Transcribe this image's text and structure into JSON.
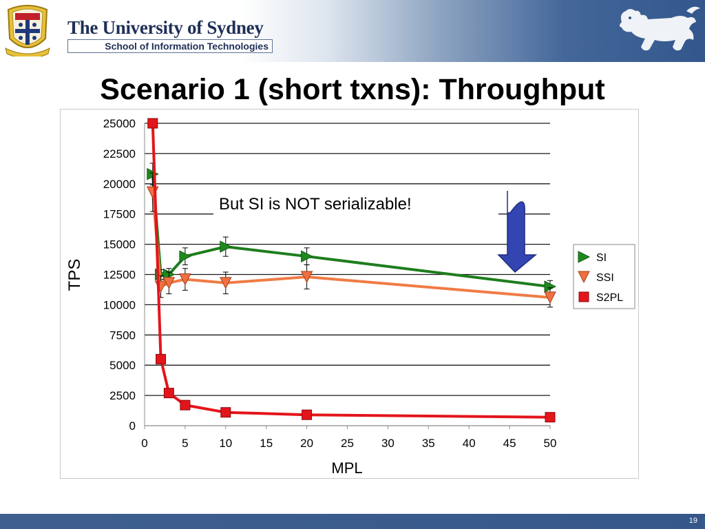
{
  "header": {
    "university": "The University of Sydney",
    "school": "School of Information Technologies",
    "crest_icon": "university-crest",
    "lion_icon": "lion-emblem",
    "brand_color": "#1f2f56",
    "banner_color": "#33578c"
  },
  "slide": {
    "title": "Scenario 1 (short txns): Throughput",
    "page_number": "19"
  },
  "annotation": {
    "text": "But SI is NOT serializable!",
    "arrow_icon": "down-arrow",
    "arrow_color": "#3345b0"
  },
  "chart_data": {
    "type": "line",
    "xlabel": "MPL",
    "ylabel": "TPS",
    "xlim": [
      0,
      50
    ],
    "ylim": [
      0,
      25000
    ],
    "x_ticks": [
      "0",
      "5",
      "10",
      "15",
      "20",
      "25",
      "30",
      "35",
      "40",
      "45",
      "50"
    ],
    "y_ticks": [
      "0",
      "2500",
      "5000",
      "7500",
      "10000",
      "12500",
      "15000",
      "17500",
      "20000",
      "22500",
      "25000"
    ],
    "grid": "horizontal",
    "legend_position": "right",
    "error_bars": true,
    "series": [
      {
        "name": "SI",
        "color": "#1e8a1e",
        "line_color": "#1e7d1e",
        "marker": "triangle-right",
        "x": [
          1,
          2,
          3,
          5,
          10,
          20,
          50
        ],
        "y": [
          20800,
          12500,
          12500,
          14000,
          14800,
          14000,
          11500
        ],
        "err": [
          900,
          400,
          500,
          700,
          800,
          700,
          500
        ]
      },
      {
        "name": "SSI",
        "color": "#f07040",
        "line_color": "#f07b45",
        "marker": "triangle-down",
        "x": [
          1,
          2,
          3,
          5,
          10,
          20,
          50
        ],
        "y": [
          19300,
          11500,
          11800,
          12100,
          11800,
          12300,
          10600
        ],
        "err": [
          1600,
          900,
          900,
          900,
          900,
          1000,
          800
        ]
      },
      {
        "name": "S2PL",
        "color": "#e3151b",
        "line_color": "#e3151b",
        "marker": "square",
        "x": [
          1,
          2,
          3,
          5,
          10,
          20,
          50
        ],
        "y": [
          25000,
          5500,
          2700,
          1700,
          1100,
          900,
          700
        ],
        "err": [
          0,
          300,
          200,
          100,
          80,
          60,
          50
        ]
      }
    ]
  }
}
